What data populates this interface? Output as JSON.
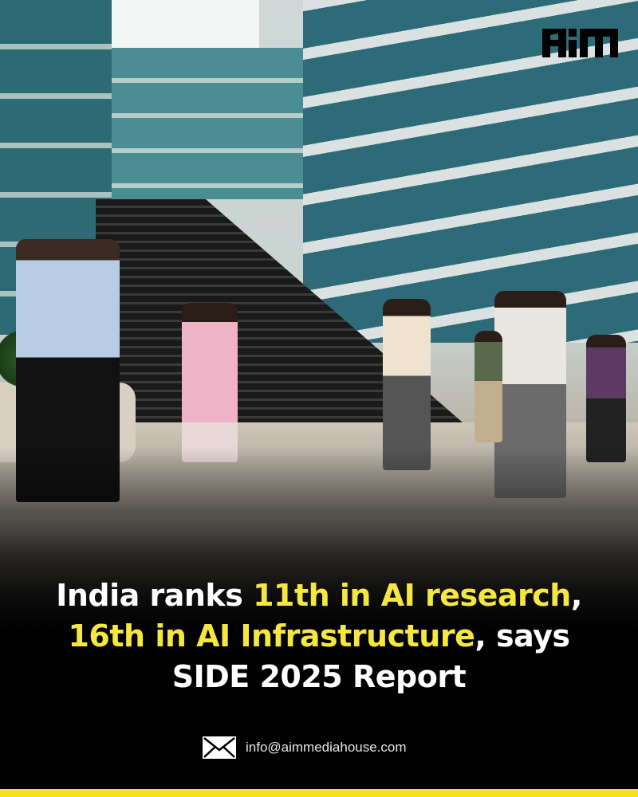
{
  "brand": {
    "logo_text": "AIM",
    "accent_color": "#f6e640",
    "bar_color": "#f5e11f"
  },
  "headline": {
    "line1_white": "India ranks ",
    "line1_yellow": "11th in AI research",
    ",": ",",
    "line1_end": ",",
    "line2_yellow": "16th in AI Infrastructure",
    "line2_white": ", says",
    "line3_white": "SIDE 2025 Report"
  },
  "contact": {
    "icon": "envelope-icon",
    "email": "info@aimmediahouse.com"
  }
}
